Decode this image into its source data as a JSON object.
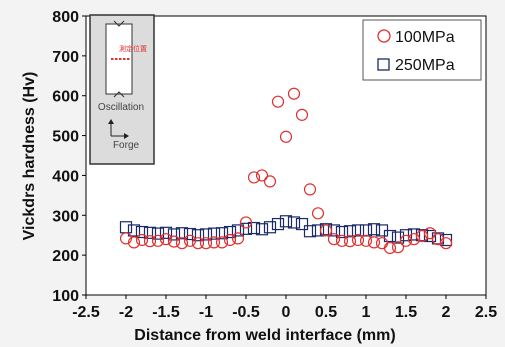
{
  "chart_data": {
    "type": "scatter",
    "xlabel": "Distance from weld interface (mm)",
    "ylabel": "Vickdrs hardness (Hv)",
    "xlim": [
      -2.5,
      2.5
    ],
    "ylim": [
      100,
      800
    ],
    "xticks": [
      "-2.5",
      "-2",
      "-1.5",
      "-1",
      "-0.5",
      "0",
      "0.5",
      "1",
      "1.5",
      "2",
      "2.5"
    ],
    "yticks": [
      "100",
      "200",
      "300",
      "400",
      "500",
      "600",
      "700",
      "800"
    ],
    "grid": false,
    "legend_position": "top-right",
    "series": [
      {
        "name": "100MPa",
        "marker": "circle",
        "color": "#e03030",
        "points": [
          [
            -2.0,
            242
          ],
          [
            -1.9,
            232
          ],
          [
            -1.8,
            238
          ],
          [
            -1.7,
            235
          ],
          [
            -1.6,
            236
          ],
          [
            -1.5,
            240
          ],
          [
            -1.4,
            234
          ],
          [
            -1.3,
            230
          ],
          [
            -1.2,
            236
          ],
          [
            -1.1,
            230
          ],
          [
            -1.0,
            230
          ],
          [
            -0.9,
            232
          ],
          [
            -0.8,
            232
          ],
          [
            -0.7,
            238
          ],
          [
            -0.6,
            242
          ],
          [
            -0.5,
            282
          ],
          [
            -0.4,
            395
          ],
          [
            -0.3,
            400
          ],
          [
            -0.2,
            385
          ],
          [
            -0.1,
            585
          ],
          [
            0.0,
            497
          ],
          [
            0.1,
            605
          ],
          [
            0.2,
            552
          ],
          [
            0.3,
            365
          ],
          [
            0.4,
            305
          ],
          [
            0.5,
            262
          ],
          [
            0.6,
            240
          ],
          [
            0.7,
            236
          ],
          [
            0.8,
            235
          ],
          [
            0.9,
            238
          ],
          [
            1.0,
            236
          ],
          [
            1.1,
            232
          ],
          [
            1.2,
            230
          ],
          [
            1.3,
            218
          ],
          [
            1.4,
            220
          ],
          [
            1.5,
            236
          ],
          [
            1.6,
            240
          ],
          [
            1.7,
            248
          ],
          [
            1.8,
            255
          ],
          [
            1.9,
            240
          ],
          [
            2.0,
            230
          ]
        ]
      },
      {
        "name": "250MPa",
        "marker": "square",
        "color": "#1a2a66",
        "points": [
          [
            -2.0,
            270
          ],
          [
            -1.9,
            262
          ],
          [
            -1.8,
            258
          ],
          [
            -1.7,
            256
          ],
          [
            -1.6,
            254
          ],
          [
            -1.5,
            256
          ],
          [
            -1.4,
            252
          ],
          [
            -1.3,
            255
          ],
          [
            -1.2,
            253
          ],
          [
            -1.1,
            250
          ],
          [
            -1.0,
            252
          ],
          [
            -0.9,
            254
          ],
          [
            -0.8,
            255
          ],
          [
            -0.7,
            258
          ],
          [
            -0.6,
            262
          ],
          [
            -0.5,
            266
          ],
          [
            -0.4,
            268
          ],
          [
            -0.3,
            265
          ],
          [
            -0.2,
            270
          ],
          [
            -0.1,
            278
          ],
          [
            0.0,
            285
          ],
          [
            0.1,
            282
          ],
          [
            0.2,
            278
          ],
          [
            0.3,
            260
          ],
          [
            0.4,
            262
          ],
          [
            0.5,
            265
          ],
          [
            0.6,
            262
          ],
          [
            0.7,
            258
          ],
          [
            0.8,
            260
          ],
          [
            0.9,
            262
          ],
          [
            1.0,
            262
          ],
          [
            1.1,
            265
          ],
          [
            1.2,
            262
          ],
          [
            1.3,
            248
          ],
          [
            1.4,
            244
          ],
          [
            1.5,
            250
          ],
          [
            1.6,
            252
          ],
          [
            1.7,
            250
          ],
          [
            1.8,
            248
          ],
          [
            1.9,
            242
          ],
          [
            2.0,
            238
          ]
        ]
      }
    ]
  },
  "inset": {
    "jp_label": "測定位置",
    "oscillation_label": "Oscillation",
    "forge_label": "Forge"
  }
}
